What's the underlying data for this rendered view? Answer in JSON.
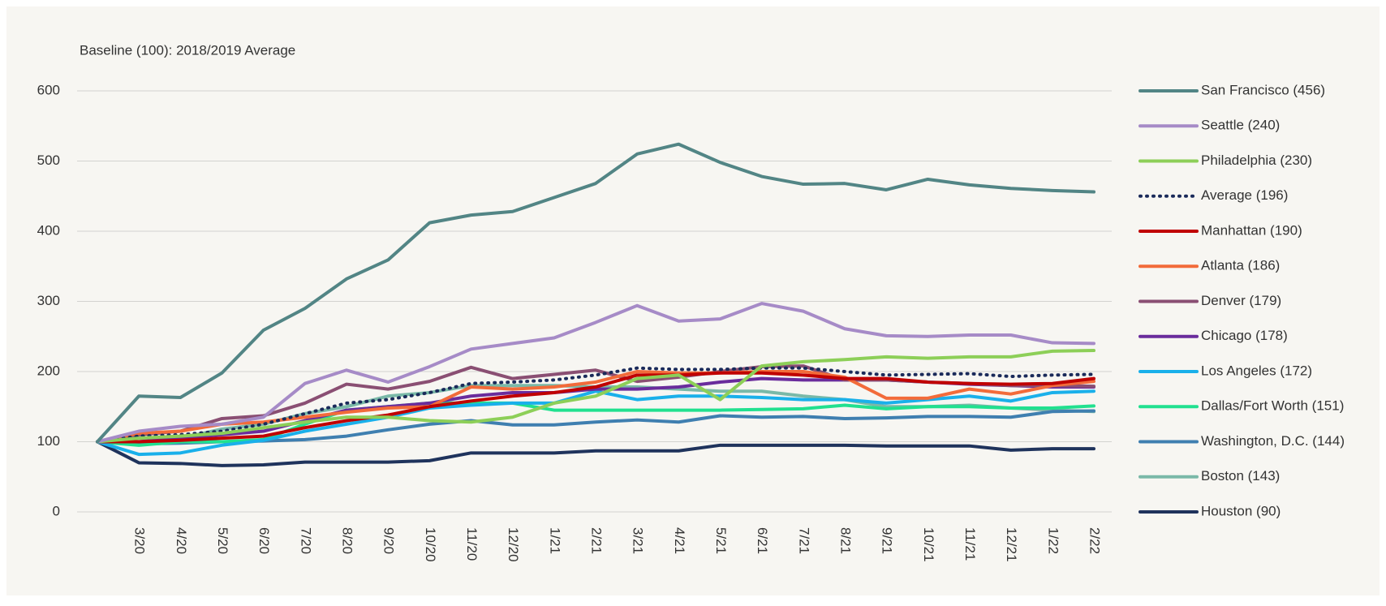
{
  "chart_data": {
    "type": "line",
    "subtitle": "Baseline (100): 2018/2019 Average",
    "categories": [
      null,
      "3/20",
      "4/20",
      "5/20",
      "6/20",
      "7/20",
      "8/20",
      "9/20",
      "10/20",
      "11/20",
      "12/20",
      "1/21",
      "2/21",
      "3/21",
      "4/21",
      "5/21",
      "6/21",
      "7/21",
      "8/21",
      "9/21",
      "10/21",
      "11/21",
      "12/21",
      "1/22",
      "2/22"
    ],
    "ylim": [
      0,
      600
    ],
    "yticks": [
      0,
      100,
      200,
      300,
      400,
      500,
      600
    ],
    "grid": true,
    "legend": "right",
    "series": [
      {
        "name": "San Francisco (456)",
        "color": "#528585",
        "values": [
          100,
          165,
          163,
          198,
          259,
          290,
          332,
          359,
          412,
          423,
          428,
          448,
          468,
          510,
          524,
          498,
          478,
          467,
          468,
          459,
          474,
          466,
          461,
          458,
          456
        ]
      },
      {
        "name": "Seattle (240)",
        "color": "#a68bc7",
        "values": [
          100,
          115,
          122,
          125,
          135,
          183,
          202,
          185,
          207,
          232,
          240,
          248,
          270,
          294,
          272,
          275,
          297,
          286,
          261,
          251,
          250,
          252,
          252,
          241,
          240
        ]
      },
      {
        "name": "Philadelphia (230)",
        "color": "#8dcf58",
        "values": [
          100,
          105,
          108,
          112,
          120,
          128,
          135,
          135,
          130,
          128,
          135,
          155,
          165,
          190,
          195,
          160,
          208,
          214,
          217,
          221,
          219,
          221,
          221,
          229,
          230
        ]
      },
      {
        "name": "Average (196)",
        "color": "#1a2a5a",
        "style": "dotted",
        "values": [
          100,
          108,
          110,
          115,
          125,
          140,
          155,
          160,
          170,
          183,
          185,
          188,
          195,
          205,
          203,
          203,
          205,
          205,
          200,
          195,
          196,
          197,
          193,
          195,
          196
        ]
      },
      {
        "name": "Manhattan (190)",
        "color": "#c00000",
        "values": [
          100,
          100,
          102,
          105,
          108,
          120,
          130,
          138,
          150,
          158,
          165,
          170,
          178,
          195,
          195,
          198,
          198,
          195,
          190,
          190,
          185,
          183,
          182,
          183,
          190
        ]
      },
      {
        "name": "Atlanta (186)",
        "color": "#f26b3a",
        "values": [
          100,
          112,
          115,
          125,
          128,
          135,
          142,
          148,
          150,
          178,
          175,
          178,
          185,
          200,
          198,
          198,
          200,
          200,
          192,
          162,
          162,
          175,
          168,
          180,
          186
        ]
      },
      {
        "name": "Denver (179)",
        "color": "#8a4f73",
        "values": [
          100,
          110,
          115,
          133,
          137,
          155,
          182,
          175,
          186,
          206,
          190,
          196,
          202,
          186,
          192,
          200,
          207,
          208,
          188,
          188,
          185,
          183,
          180,
          180,
          179
        ]
      },
      {
        "name": "Chicago (178)",
        "color": "#6a2c9c",
        "values": [
          100,
          100,
          105,
          110,
          115,
          130,
          145,
          150,
          155,
          165,
          170,
          170,
          175,
          175,
          178,
          185,
          190,
          188,
          188,
          188,
          185,
          182,
          180,
          178,
          178
        ]
      },
      {
        "name": "Los Angeles (172)",
        "color": "#1ab0ea",
        "values": [
          100,
          82,
          84,
          95,
          102,
          115,
          125,
          135,
          148,
          152,
          155,
          155,
          172,
          160,
          165,
          165,
          163,
          160,
          160,
          155,
          160,
          165,
          158,
          170,
          172
        ]
      },
      {
        "name": "Dallas/Fort Worth (151)",
        "color": "#21e08f",
        "values": [
          100,
          95,
          100,
          100,
          103,
          125,
          145,
          150,
          155,
          155,
          155,
          145,
          145,
          145,
          145,
          145,
          146,
          147,
          152,
          147,
          150,
          150,
          148,
          148,
          151
        ]
      },
      {
        "name": "Washington, D.C. (144)",
        "color": "#3f7fb0",
        "values": [
          100,
          97,
          98,
          100,
          101,
          103,
          108,
          117,
          125,
          130,
          124,
          124,
          128,
          131,
          128,
          137,
          135,
          136,
          133,
          134,
          136,
          136,
          135,
          143,
          144
        ]
      },
      {
        "name": "Boston (143)",
        "color": "#7ab9a8",
        "values": [
          100,
          105,
          105,
          118,
          125,
          140,
          150,
          165,
          170,
          180,
          180,
          180,
          178,
          178,
          175,
          172,
          172,
          165,
          160,
          150,
          150,
          152,
          148,
          145,
          143
        ]
      },
      {
        "name": "Houston (90)",
        "color": "#1f335c",
        "values": [
          100,
          70,
          69,
          66,
          67,
          71,
          71,
          71,
          73,
          84,
          84,
          84,
          87,
          87,
          87,
          95,
          95,
          95,
          95,
          94,
          94,
          94,
          88,
          90,
          90
        ]
      }
    ]
  }
}
